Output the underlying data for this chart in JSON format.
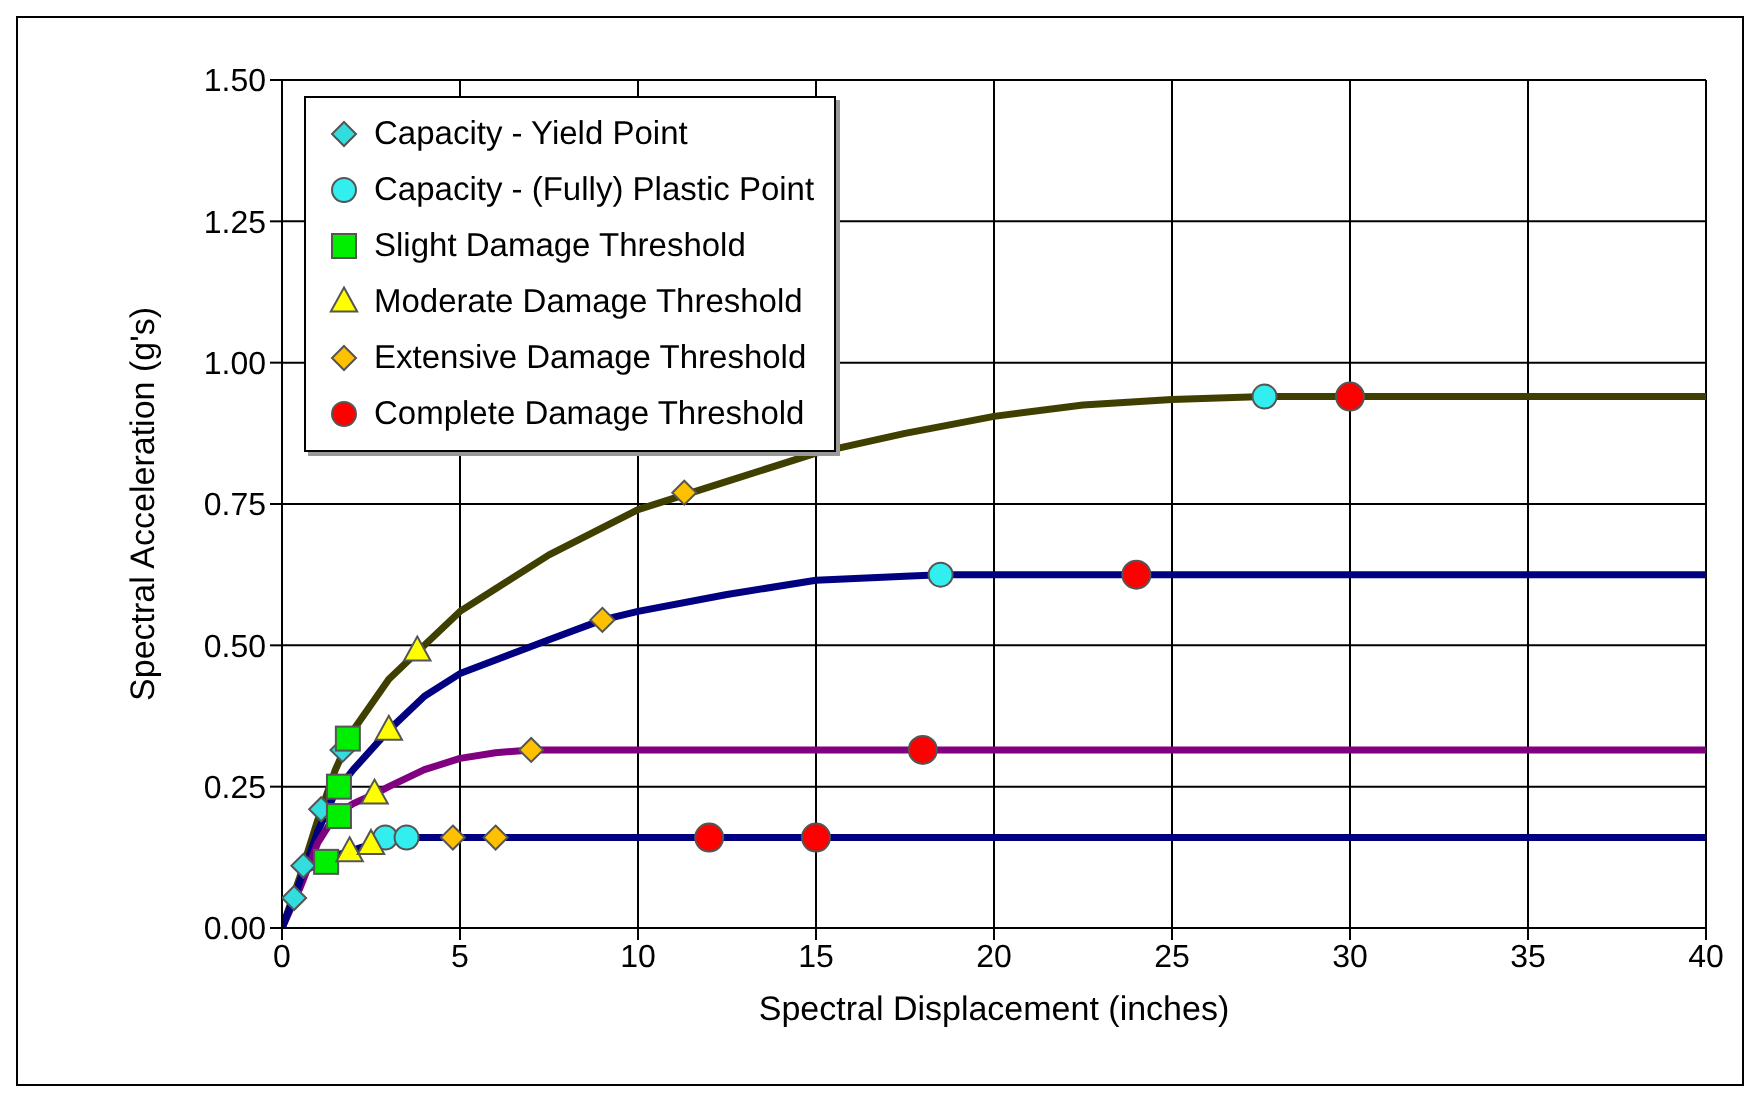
{
  "chart_data": {
    "type": "line",
    "xlabel": "Spectral Displacement (inches)",
    "ylabel": "Spectral Acceleration (g's)",
    "xlim": [
      0,
      40
    ],
    "xticks": [
      0,
      5,
      10,
      15,
      20,
      25,
      30,
      35,
      40
    ],
    "ylim": [
      0,
      1.5
    ],
    "yticks": [
      {
        "value": 0,
        "label": "0.00"
      },
      {
        "value": 0.25,
        "label": "0.25"
      },
      {
        "value": 0.5,
        "label": "0.50"
      },
      {
        "value": 0.75,
        "label": "0.75"
      },
      {
        "value": 1,
        "label": "1.00"
      },
      {
        "value": 1.25,
        "label": "1.25"
      },
      {
        "value": 1.5,
        "label": "1.50"
      }
    ],
    "grid": true,
    "legend": "top left",
    "marker": "none",
    "line_style": "solid",
    "series": [
      {
        "color": "#3f3f00",
        "x": [
          0,
          0.5,
          1,
          1.5,
          2,
          3,
          4,
          5,
          6,
          7.5,
          10,
          12.5,
          15,
          17.5,
          20,
          22.5,
          25,
          27.6,
          30,
          40
        ],
        "values": [
          0,
          0.09,
          0.19,
          0.28,
          0.35,
          0.44,
          0.5,
          0.56,
          0.6,
          0.66,
          0.74,
          0.79,
          0.84,
          0.875,
          0.905,
          0.925,
          0.935,
          0.94,
          0.94,
          0.94
        ]
      },
      {
        "color": "#000080",
        "x": [
          0,
          0.5,
          1,
          1.5,
          2,
          3,
          4,
          5,
          7.5,
          9,
          10,
          12.5,
          15,
          17.5,
          18.5,
          24,
          40
        ],
        "values": [
          0,
          0.08,
          0.17,
          0.24,
          0.28,
          0.35,
          0.41,
          0.45,
          0.51,
          0.545,
          0.56,
          0.59,
          0.615,
          0.622,
          0.625,
          0.625,
          0.625
        ]
      },
      {
        "color": "#800080",
        "x": [
          0,
          0.5,
          1,
          1.5,
          2,
          2.6,
          3,
          4,
          5,
          6,
          7,
          18,
          40
        ],
        "values": [
          0,
          0.07,
          0.15,
          0.2,
          0.22,
          0.237,
          0.25,
          0.28,
          0.3,
          0.31,
          0.315,
          0.315,
          0.315
        ]
      },
      {
        "color": "#000080",
        "x": [
          0,
          0.34,
          0.6,
          1,
          1.24,
          1.5,
          1.9,
          2.5,
          2.9,
          3.5,
          12,
          15,
          40
        ],
        "values": [
          0,
          0.053,
          0.1,
          0.113,
          0.117,
          0.128,
          0.136,
          0.148,
          0.16,
          0.16,
          0.16,
          0.16,
          0.16
        ]
      },
      {
        "type": "scatter",
        "name": "Capacity - Yield Point",
        "marker": "diamond",
        "color": "#33dddd",
        "x": [
          0.34,
          0.6,
          1.1,
          1.7
        ],
        "values": [
          0.053,
          0.11,
          0.21,
          0.315
        ]
      },
      {
        "type": "scatter",
        "name": "Capacity - (Fully) Plastic Point",
        "marker": "circle",
        "color": "#33eeee",
        "x": [
          2.9,
          3.5,
          18.5,
          27.6
        ],
        "values": [
          0.16,
          0.16,
          0.625,
          0.94
        ]
      },
      {
        "type": "scatter",
        "name": "Slight Damage Threshold",
        "marker": "square",
        "color": "#00ee00",
        "x": [
          1.24,
          1.6,
          1.6,
          1.85
        ],
        "values": [
          0.117,
          0.198,
          0.25,
          0.335
        ]
      },
      {
        "type": "scatter",
        "name": "Moderate Damage Threshold",
        "marker": "triangle",
        "color": "#ffff00",
        "x": [
          1.9,
          2.5,
          2.6,
          3.0,
          3.8
        ],
        "values": [
          0.135,
          0.148,
          0.237,
          0.35,
          0.49
        ]
      },
      {
        "type": "scatter",
        "name": "Extensive Damage Threshold",
        "marker": "diamond",
        "color": "#ffc000",
        "x": [
          4.8,
          6.0,
          7.0,
          9.0,
          11.3
        ],
        "values": [
          0.16,
          0.16,
          0.315,
          0.545,
          0.77
        ]
      },
      {
        "type": "scatter",
        "name": "Complete Damage Threshold",
        "marker": "circle",
        "color": "#ff0000",
        "x": [
          12,
          15,
          18,
          24,
          30
        ],
        "values": [
          0.16,
          0.16,
          0.315,
          0.625,
          0.94
        ]
      }
    ]
  }
}
